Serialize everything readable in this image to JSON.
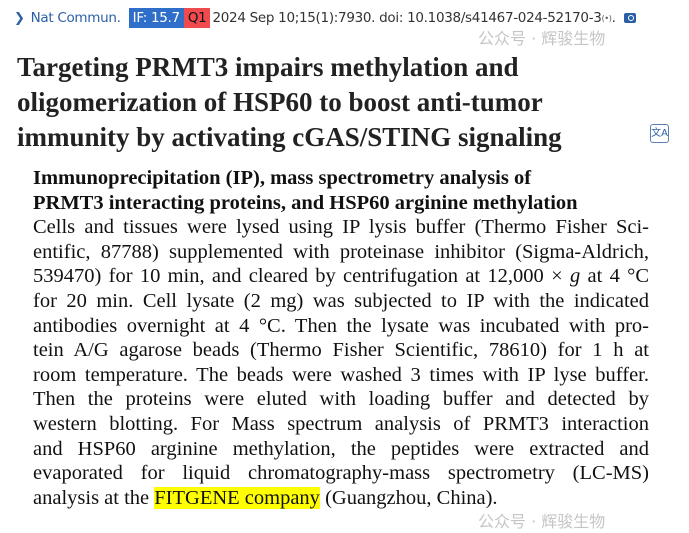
{
  "citation": {
    "journal": "Nat Commun.",
    "if_badge": "IF: 15.7",
    "quartile": "Q1",
    "details": "2024 Sep 10;15(1):7930. doi: 10.1038/s41467-024-52170-3",
    "sup": "(•)",
    "tail": ".",
    "colors": {
      "if": "#2f6fc9",
      "q": "#f04a4f",
      "link": "#2a5fa8"
    }
  },
  "title_lines": [
    "Targeting PRMT3 impairs methylation and",
    "oligomerization of HSP60 to boost anti-tumor",
    "immunity by activating cGAS/STING signaling"
  ],
  "section": {
    "heading_lines": [
      "Immunoprecipitation (IP), mass spectrometry analysis of",
      "PRMT3 interacting proteins, and HSP60 arginine methylation"
    ],
    "body_lines": [
      "Cells and tissues were lysed using IP lysis buffer (Thermo Fisher Sci-",
      "entific, 87788) supplemented with proteinase inhibitor (Sigma-Aldrich,",
      "539470) for 10 min, and cleared by centrifugation at 12,000 × ",
      "for 20 min. Cell lysate (2 mg) was subjected to IP with the indicated",
      "antibodies overnight at 4 °C. Then the lysate was incubated with pro-",
      "tein A/G agarose beads (Thermo Fisher Scientific, 78610) for 1 h at",
      "room temperature. The beads were washed 3 times with IP lyse buffer.",
      "Then the proteins were eluted with loading buffer and detected by",
      "western blotting. For Mass spectrum analysis of PRMT3 interaction",
      "and HSP60 arginine methylation, the peptides were extracted and",
      "evaporated for liquid chromatography-mass spectrometry (LC-MS)",
      "analysis at the "
    ],
    "g_italic": "g",
    "line3_tail": " at 4 °C",
    "highlight": "FITGENE company",
    "last_tail": " (Guangzhou, China)."
  },
  "watermarks": [
    "公众号 · 辉骏生物",
    "公众号 · 辉骏生物"
  ],
  "translate_icon": "文A"
}
